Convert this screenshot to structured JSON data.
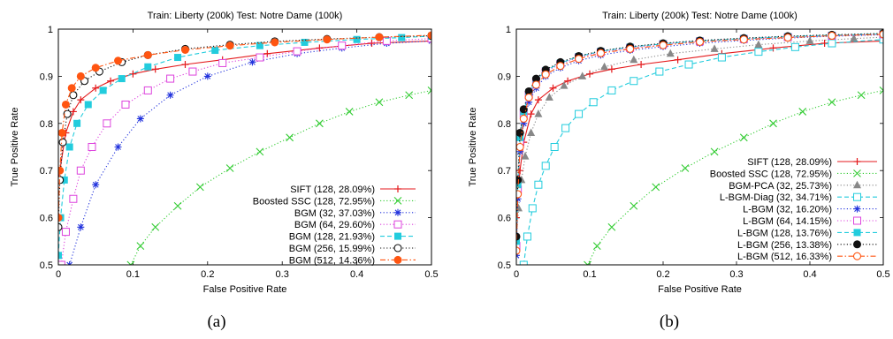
{
  "chart_data": [
    {
      "type": "line",
      "title": "Train: Liberty (200k) Test: Notre Dame (100k)",
      "xlabel": "False Positive Rate",
      "ylabel": "True Positive Rate",
      "xlim": [
        0,
        0.5
      ],
      "ylim": [
        0.5,
        1
      ],
      "xticks": [
        "0",
        "0.1",
        "0.2",
        "0.3",
        "0.4",
        "0.5"
      ],
      "yticks": [
        "0.5",
        "0.6",
        "0.7",
        "0.8",
        "0.9",
        "1"
      ],
      "grid": false,
      "legend_position": "bottom-right",
      "series": [
        {
          "name": "SIFT (128, 28.09%)",
          "color": "#e41a1c",
          "dash": "solid",
          "marker": "plus",
          "x": [
            0,
            0.01,
            0.02,
            0.03,
            0.05,
            0.07,
            0.1,
            0.13,
            0.17,
            0.22,
            0.28,
            0.35,
            0.42,
            0.5
          ],
          "y": [
            0.68,
            0.78,
            0.825,
            0.85,
            0.875,
            0.89,
            0.905,
            0.915,
            0.925,
            0.935,
            0.948,
            0.96,
            0.97,
            0.975
          ]
        },
        {
          "name": "Boosted SSC (128, 72.95%)",
          "color": "#33cc33",
          "dash": "dotted",
          "marker": "x",
          "x": [
            0.097,
            0.11,
            0.13,
            0.16,
            0.19,
            0.23,
            0.27,
            0.31,
            0.35,
            0.39,
            0.43,
            0.47,
            0.5
          ],
          "y": [
            0.5,
            0.54,
            0.58,
            0.625,
            0.665,
            0.705,
            0.74,
            0.77,
            0.8,
            0.825,
            0.845,
            0.86,
            0.87
          ]
        },
        {
          "name": "BGM (32, 37.03%)",
          "color": "#2233dd",
          "dash": "dotted",
          "marker": "star",
          "x": [
            0.015,
            0.03,
            0.05,
            0.08,
            0.11,
            0.15,
            0.2,
            0.26,
            0.32,
            0.38,
            0.44,
            0.5
          ],
          "y": [
            0.5,
            0.58,
            0.67,
            0.75,
            0.81,
            0.86,
            0.9,
            0.93,
            0.948,
            0.96,
            0.97,
            0.975
          ]
        },
        {
          "name": "BGM (64, 29.60%)",
          "color": "#dd44dd",
          "dash": "dotted",
          "marker": "square-open",
          "x": [
            0.004,
            0.01,
            0.02,
            0.03,
            0.045,
            0.065,
            0.09,
            0.12,
            0.15,
            0.18,
            0.22,
            0.27,
            0.32,
            0.38,
            0.44,
            0.5
          ],
          "y": [
            0.5,
            0.57,
            0.64,
            0.7,
            0.75,
            0.8,
            0.84,
            0.87,
            0.895,
            0.91,
            0.928,
            0.94,
            0.953,
            0.965,
            0.975,
            0.98
          ]
        },
        {
          "name": "BGM (128, 21.93%)",
          "color": "#22ccdd",
          "dash": "dashed",
          "marker": "square-filled",
          "x": [
            0,
            0.003,
            0.008,
            0.015,
            0.025,
            0.04,
            0.06,
            0.085,
            0.12,
            0.16,
            0.21,
            0.27,
            0.33,
            0.4,
            0.46,
            0.5
          ],
          "y": [
            0.52,
            0.6,
            0.68,
            0.75,
            0.8,
            0.84,
            0.87,
            0.895,
            0.92,
            0.94,
            0.955,
            0.965,
            0.972,
            0.978,
            0.982,
            0.985
          ]
        },
        {
          "name": "BGM (256, 15.99%)",
          "color": "#111111",
          "dash": "dotted",
          "marker": "circle-open",
          "x": [
            0,
            0.002,
            0.006,
            0.012,
            0.02,
            0.035,
            0.055,
            0.085,
            0.12,
            0.17,
            0.23,
            0.29,
            0.36,
            0.43,
            0.5
          ],
          "y": [
            0.58,
            0.68,
            0.76,
            0.82,
            0.86,
            0.89,
            0.91,
            0.93,
            0.945,
            0.958,
            0.967,
            0.974,
            0.979,
            0.983,
            0.986
          ]
        },
        {
          "name": "BGM (512, 14.36%)",
          "color": "#ff5511",
          "dash": "dashdot",
          "marker": "circle-filled",
          "x": [
            0,
            0.002,
            0.005,
            0.01,
            0.018,
            0.03,
            0.05,
            0.08,
            0.12,
            0.17,
            0.23,
            0.29,
            0.36,
            0.43,
            0.5
          ],
          "y": [
            0.6,
            0.7,
            0.78,
            0.84,
            0.875,
            0.9,
            0.918,
            0.933,
            0.945,
            0.956,
            0.965,
            0.972,
            0.978,
            0.983,
            0.987
          ]
        }
      ]
    },
    {
      "type": "line",
      "title": "Train: Liberty (200k) Test: Notre Dame (100k)",
      "xlabel": "False Positive Rate",
      "ylabel": "True Positive Rate",
      "xlim": [
        0,
        0.5
      ],
      "ylim": [
        0.5,
        1
      ],
      "xticks": [
        "0",
        "0.1",
        "0.2",
        "0.3",
        "0.4",
        "0.5"
      ],
      "yticks": [
        "0.5",
        "0.6",
        "0.7",
        "0.8",
        "0.9",
        "1"
      ],
      "grid": false,
      "legend_position": "bottom-right",
      "series": [
        {
          "name": "SIFT (128, 28.09%)",
          "color": "#e41a1c",
          "dash": "solid",
          "marker": "plus",
          "x": [
            0,
            0.005,
            0.01,
            0.02,
            0.03,
            0.05,
            0.07,
            0.1,
            0.13,
            0.17,
            0.22,
            0.28,
            0.35,
            0.42,
            0.5
          ],
          "y": [
            0.6,
            0.7,
            0.76,
            0.82,
            0.85,
            0.875,
            0.89,
            0.905,
            0.915,
            0.925,
            0.935,
            0.948,
            0.96,
            0.97,
            0.975
          ]
        },
        {
          "name": "Boosted SSC (128, 72.95%)",
          "color": "#33cc33",
          "dash": "dotted",
          "marker": "x",
          "x": [
            0.097,
            0.11,
            0.13,
            0.16,
            0.19,
            0.23,
            0.27,
            0.31,
            0.35,
            0.39,
            0.43,
            0.47,
            0.5
          ],
          "y": [
            0.5,
            0.54,
            0.58,
            0.625,
            0.665,
            0.705,
            0.74,
            0.77,
            0.8,
            0.825,
            0.845,
            0.86,
            0.87
          ]
        },
        {
          "name": "BGM-PCA (32, 25.73%)",
          "color": "#888888",
          "dash": "dotted",
          "marker": "triangle",
          "x": [
            0,
            0.003,
            0.007,
            0.012,
            0.02,
            0.03,
            0.045,
            0.065,
            0.09,
            0.12,
            0.16,
            0.21,
            0.27,
            0.33,
            0.4,
            0.46,
            0.5
          ],
          "y": [
            0.55,
            0.62,
            0.68,
            0.73,
            0.78,
            0.82,
            0.855,
            0.88,
            0.9,
            0.92,
            0.935,
            0.948,
            0.958,
            0.967,
            0.975,
            0.98,
            0.983
          ]
        },
        {
          "name": "L-BGM-Diag (32, 34.71%)",
          "color": "#22ccdd",
          "dash": "dashed",
          "marker": "square-open",
          "x": [
            0.01,
            0.015,
            0.022,
            0.03,
            0.04,
            0.052,
            0.067,
            0.085,
            0.105,
            0.13,
            0.16,
            0.195,
            0.235,
            0.28,
            0.33,
            0.38,
            0.43,
            0.5
          ],
          "y": [
            0.5,
            0.56,
            0.62,
            0.67,
            0.71,
            0.75,
            0.79,
            0.82,
            0.845,
            0.87,
            0.89,
            0.91,
            0.925,
            0.94,
            0.952,
            0.962,
            0.97,
            0.978
          ]
        },
        {
          "name": "L-BGM (32, 16.20%)",
          "color": "#2233dd",
          "dash": "dotted",
          "marker": "star",
          "x": [
            0,
            0.002,
            0.005,
            0.01,
            0.017,
            0.027,
            0.04,
            0.06,
            0.085,
            0.115,
            0.155,
            0.2,
            0.25,
            0.31,
            0.37,
            0.43,
            0.5
          ],
          "y": [
            0.52,
            0.64,
            0.74,
            0.8,
            0.845,
            0.875,
            0.9,
            0.918,
            0.933,
            0.945,
            0.955,
            0.963,
            0.97,
            0.976,
            0.981,
            0.985,
            0.988
          ]
        },
        {
          "name": "L-BGM (64, 14.15%)",
          "color": "#dd44dd",
          "dash": "dotted",
          "marker": "square-open",
          "x": [
            0,
            0.002,
            0.005,
            0.01,
            0.017,
            0.027,
            0.04,
            0.06,
            0.085,
            0.115,
            0.155,
            0.2,
            0.25,
            0.31,
            0.37,
            0.43,
            0.5
          ],
          "y": [
            0.54,
            0.66,
            0.76,
            0.82,
            0.86,
            0.888,
            0.91,
            0.926,
            0.94,
            0.951,
            0.96,
            0.968,
            0.974,
            0.979,
            0.983,
            0.986,
            0.989
          ]
        },
        {
          "name": "L-BGM (128, 13.76%)",
          "color": "#22ccdd",
          "dash": "dashed",
          "marker": "square-filled",
          "x": [
            0,
            0.002,
            0.005,
            0.01,
            0.017,
            0.027,
            0.04,
            0.06,
            0.085,
            0.115,
            0.155,
            0.2,
            0.25,
            0.31,
            0.37,
            0.43,
            0.5
          ],
          "y": [
            0.55,
            0.67,
            0.77,
            0.825,
            0.865,
            0.892,
            0.912,
            0.928,
            0.942,
            0.953,
            0.962,
            0.969,
            0.975,
            0.98,
            0.984,
            0.987,
            0.99
          ]
        },
        {
          "name": "L-BGM (256, 13.38%)",
          "color": "#111111",
          "dash": "dotted",
          "marker": "circle-filled",
          "x": [
            0,
            0.002,
            0.005,
            0.01,
            0.017,
            0.027,
            0.04,
            0.06,
            0.085,
            0.115,
            0.155,
            0.2,
            0.25,
            0.31,
            0.37,
            0.43,
            0.5
          ],
          "y": [
            0.56,
            0.68,
            0.78,
            0.83,
            0.868,
            0.895,
            0.914,
            0.93,
            0.943,
            0.954,
            0.963,
            0.97,
            0.976,
            0.981,
            0.985,
            0.988,
            0.991
          ]
        },
        {
          "name": "L-BGM (512, 16.33%)",
          "color": "#ff5511",
          "dash": "dashdot",
          "marker": "circle-open",
          "x": [
            0,
            0.002,
            0.005,
            0.01,
            0.017,
            0.027,
            0.04,
            0.06,
            0.085,
            0.115,
            0.155,
            0.2,
            0.25,
            0.31,
            0.37,
            0.43,
            0.5
          ],
          "y": [
            0.53,
            0.65,
            0.75,
            0.81,
            0.855,
            0.882,
            0.904,
            0.922,
            0.937,
            0.949,
            0.958,
            0.966,
            0.973,
            0.978,
            0.982,
            0.986,
            0.989
          ]
        }
      ]
    }
  ],
  "captions": [
    "(a)",
    "(b)"
  ]
}
